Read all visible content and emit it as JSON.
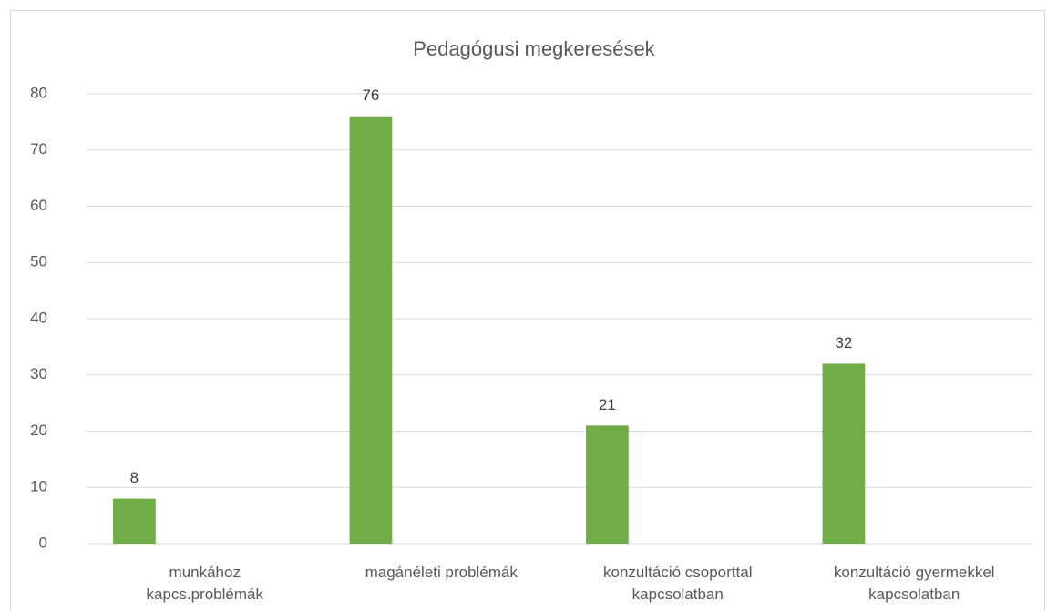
{
  "chart_data": {
    "type": "bar",
    "title": "Pedagógusi megkeresések",
    "categories": [
      "munkához\nkapcs.problémák",
      "magánéleti problémák",
      "konzultáció csoporttal\nkapcsolatban",
      "konzultáció gyermekkel\nkapcsolatban"
    ],
    "values": [
      8,
      76,
      21,
      32
    ],
    "color": "#70ad47",
    "ylim": [
      0,
      80
    ],
    "yticks": [
      0,
      10,
      20,
      30,
      40,
      50,
      60,
      70,
      80
    ],
    "grid": true
  }
}
